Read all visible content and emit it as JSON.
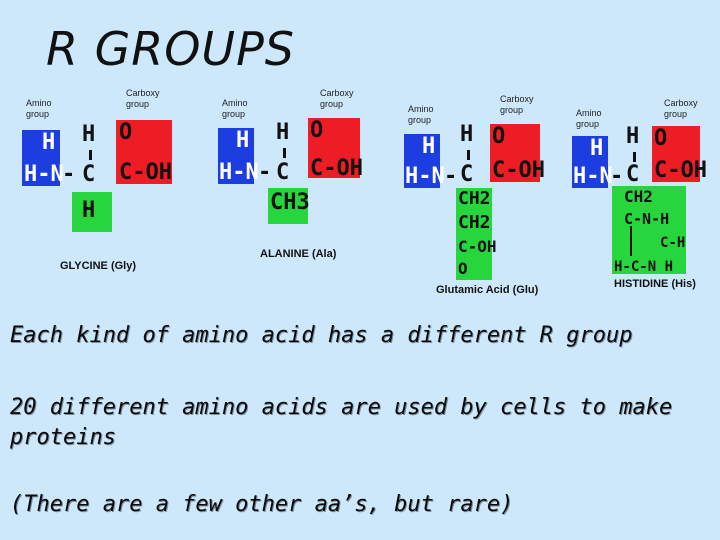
{
  "title": "R GROUPS",
  "labels": {
    "amino": "Amino",
    "group": "group",
    "carboxy": "Carboxy",
    "H": "H",
    "N": "N",
    "C": "C",
    "O": "O",
    "OH": "OH",
    "CH3": "CH3",
    "CH2": "CH2",
    "dash": "-",
    "CNH": "C-N-H",
    "CH": "C-H",
    "HCNH": "H-C-N H"
  },
  "molecules": {
    "glycine": "GLYCINE (Gly)",
    "alanine": "ALANINE (Ala)",
    "glutamic": "Glutamic Acid (Glu)",
    "histidine": "HISTIDINE (His)"
  },
  "lines": [
    "Each kind of amino acid has a different R group",
    "20 different amino acids are used by cells to make proteins",
    "(There are a few other aa’s, but rare)"
  ],
  "colors": {
    "amino": "#1c3ee0",
    "carboxy": "#ee1c24",
    "rgroup": "#27d63d",
    "background": "#cde8fb"
  }
}
